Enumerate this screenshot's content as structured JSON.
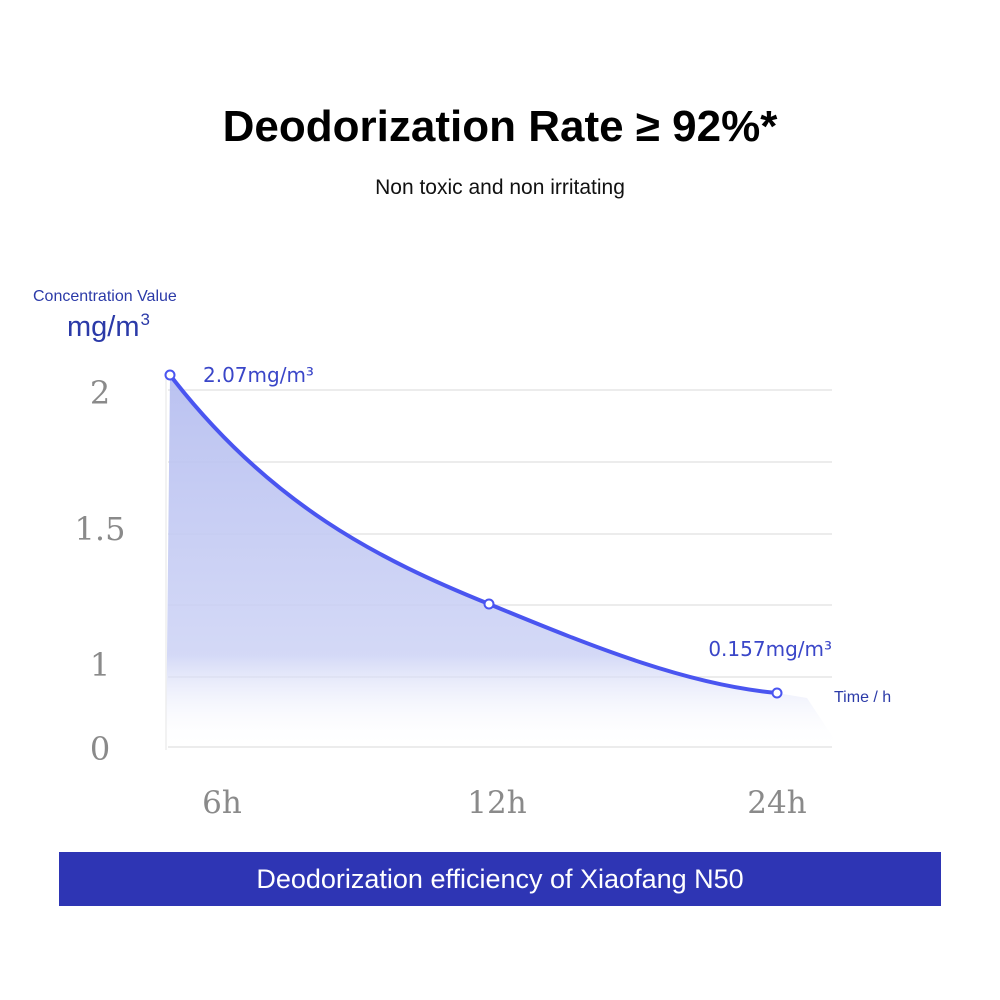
{
  "header": {
    "title": "Deodorization Rate ≥ 92%*",
    "subtitle": "Non toxic and non irritating"
  },
  "axis": {
    "y_caption": "Concentration Value",
    "y_unit_base": "mg/m",
    "y_unit_sup": "3",
    "x_caption": "Time / h"
  },
  "chart_data": {
    "type": "area",
    "title": "Deodorization Rate ≥ 92%*",
    "xlabel": "Time / h",
    "ylabel": "Concentration Value mg/m3",
    "categories": [
      "6h",
      "12h",
      "24h"
    ],
    "yticks": [
      "0",
      "1",
      "1.5",
      "2"
    ],
    "series": [
      {
        "name": "Concentration",
        "values": [
          2.07,
          1.2,
          0.157
        ],
        "labels": [
          "2.07mg/m³",
          "",
          "0.157mg/m³"
        ]
      }
    ],
    "grid": true,
    "colors": {
      "line": "#4a55f0",
      "fill": "#bcc3f0",
      "grid": "#e6e6e6",
      "tick": "#8a8a8a"
    }
  },
  "banner": {
    "text": "Deodorization efficiency of Xiaofang N50",
    "color": "#2e35b4"
  }
}
